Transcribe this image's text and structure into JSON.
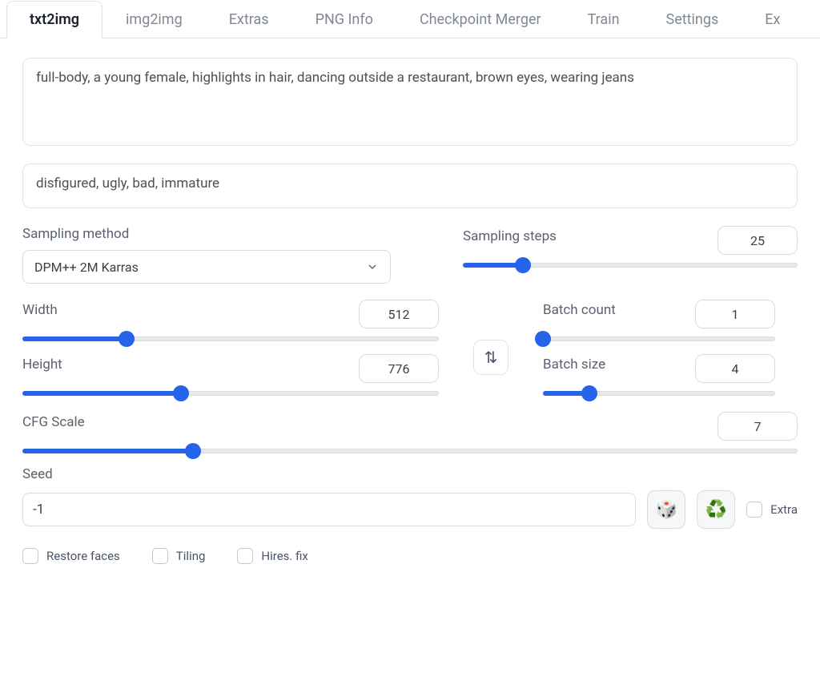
{
  "tabs": [
    "txt2img",
    "img2img",
    "Extras",
    "PNG Info",
    "Checkpoint Merger",
    "Train",
    "Settings",
    "Ex"
  ],
  "active_tab_index": 0,
  "prompts": {
    "positive": "full-body, a young female, highlights in hair, dancing outside a restaurant, brown eyes, wearing jeans",
    "negative": "disfigured, ugly, bad, immature"
  },
  "sampling": {
    "method_label": "Sampling method",
    "method_value": "DPM++ 2M Karras",
    "steps_label": "Sampling steps",
    "steps_value": 25,
    "steps_fill_pct": 18
  },
  "width": {
    "label": "Width",
    "value": 512,
    "fill_pct": 25
  },
  "height": {
    "label": "Height",
    "value": 776,
    "fill_pct": 38
  },
  "batch_count": {
    "label": "Batch count",
    "value": 1,
    "fill_pct": 0
  },
  "batch_size": {
    "label": "Batch size",
    "value": 4,
    "fill_pct": 20
  },
  "cfg": {
    "label": "CFG Scale",
    "value": 7,
    "fill_pct": 22
  },
  "seed": {
    "label": "Seed",
    "value": "-1",
    "extra_label": "Extra"
  },
  "icons": {
    "dice": "🎲",
    "recycle": "♻️",
    "swap": "⇅"
  },
  "checkboxes": {
    "restore_faces": "Restore faces",
    "tiling": "Tiling",
    "hires_fix": "Hires. fix"
  },
  "colors": {
    "accent": "#2563eb",
    "border": "#e2e4e8",
    "text": "#4a5568"
  }
}
